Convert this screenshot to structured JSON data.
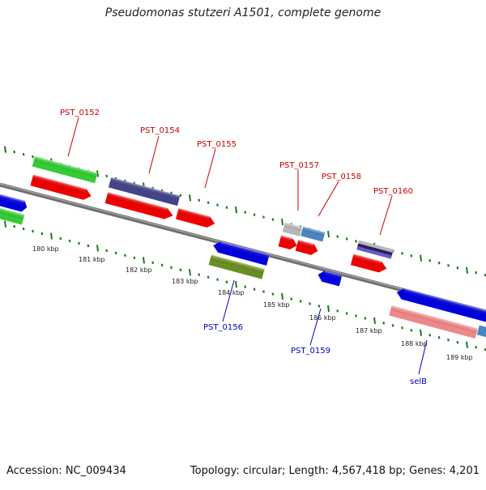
{
  "header": {
    "title": "Pseudomonas stutzeri A1501, complete genome"
  },
  "footer": {
    "accession": "Accession: NC_009434",
    "summary": "Topology: circular; Length: 4,567,418 bp; Genes: 4,201"
  },
  "colors": {
    "backbone": "#808080",
    "tick": "#1a7a1a",
    "label_top": "#cc0000",
    "label_bottom": "#0000cc",
    "scale_text": "#222222"
  },
  "scale_labels": [
    "180 kbp",
    "181 kbp",
    "182 kbp",
    "183 kbp",
    "184 kbp",
    "185 kbp",
    "186 kbp",
    "187 kbp",
    "188 kbp",
    "189 kbp"
  ],
  "gene_labels": [
    {
      "id": "PST_0152",
      "text": "PST_0152",
      "side": "top"
    },
    {
      "id": "PST_0154",
      "text": "PST_0154",
      "side": "top"
    },
    {
      "id": "PST_0155",
      "text": "PST_0155",
      "side": "top"
    },
    {
      "id": "PST_0157",
      "text": "PST_0157",
      "side": "top"
    },
    {
      "id": "PST_0158",
      "text": "PST_0158",
      "side": "top"
    },
    {
      "id": "PST_0160",
      "text": "PST_0160",
      "side": "top"
    },
    {
      "id": "PST_0156",
      "text": "PST_0156",
      "side": "bottom"
    },
    {
      "id": "PST_0159",
      "text": "PST_0159",
      "side": "bottom"
    },
    {
      "id": "selB",
      "text": "selB",
      "side": "bottom"
    }
  ],
  "features": [
    {
      "name": "forward-gene-green",
      "color": "#33cc33"
    },
    {
      "name": "forward-gene-purple",
      "color": "#44448a"
    },
    {
      "name": "forward-gene-gray",
      "color": "#b8b8b8"
    },
    {
      "name": "forward-gene-steelblue",
      "color": "#4a86c0"
    },
    {
      "name": "forward-gene-navy",
      "color": "#222266"
    },
    {
      "name": "cds-red",
      "color": "#ee0000"
    },
    {
      "name": "reverse-gene-blue",
      "color": "#0000dd"
    },
    {
      "name": "reverse-gene-olive",
      "color": "#6b8e23"
    },
    {
      "name": "reverse-gene-pink",
      "color": "#ee8888"
    }
  ]
}
